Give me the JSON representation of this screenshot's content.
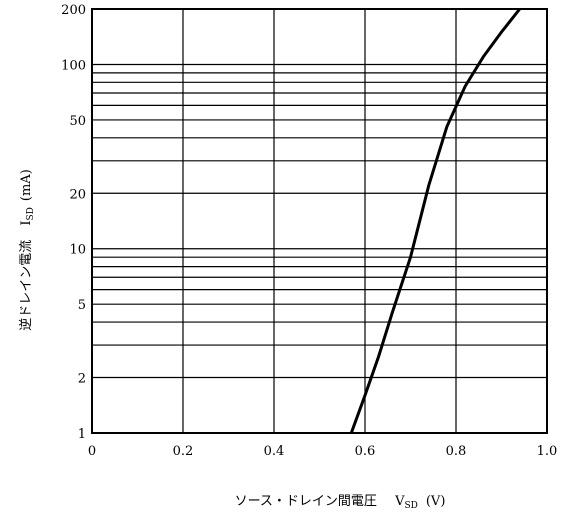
{
  "chart_data": {
    "type": "line",
    "xlabel": "ソース・ドレイン間電圧",
    "xlabel_symbol": "V",
    "xlabel_subscript": "SD",
    "xlabel_unit": "(V)",
    "ylabel": "逆ドレイン電流",
    "ylabel_symbol": "I",
    "ylabel_subscript": "SD",
    "ylabel_unit": "(mA)",
    "x_scale": "linear",
    "y_scale": "log",
    "xlim": [
      0,
      1.0
    ],
    "ylim": [
      1,
      200
    ],
    "grid": true,
    "x_ticks": [
      0,
      0.2,
      0.4,
      0.6,
      0.8,
      1.0
    ],
    "x_tick_labels": [
      "0",
      "0.2",
      "0.4",
      "0.6",
      "0.8",
      "1.0"
    ],
    "y_ticks": [
      1,
      2,
      5,
      10,
      20,
      50,
      100,
      200
    ],
    "y_tick_labels": [
      "1",
      "2",
      "5",
      "10",
      "20",
      "50",
      "100",
      "200"
    ],
    "series": [
      {
        "x": [
          0.57,
          0.6,
          0.63,
          0.66,
          0.7,
          0.74,
          0.78,
          0.82,
          0.86,
          0.9,
          0.94
        ],
        "y": [
          1,
          1.6,
          2.6,
          4.5,
          9,
          22,
          46,
          76,
          110,
          150,
          200
        ]
      }
    ]
  }
}
